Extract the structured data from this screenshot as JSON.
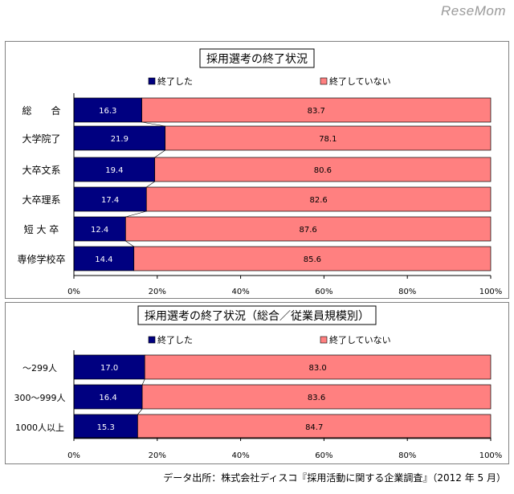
{
  "logo": "ReseMom",
  "source": "データ出所：株式会社ディスコ『採用活動に関する企業調査』（2012 年 5 月）",
  "colors": {
    "done": "#000080",
    "not_done": "#FF8080"
  },
  "chart_data": [
    {
      "type": "bar",
      "stacked": true,
      "orientation": "horizontal",
      "title": "採用選考の終了状況",
      "categories": [
        "総　　合",
        "大学院了",
        "大卒文系",
        "大卒理系",
        "短 大 卒",
        "専修学校卒"
      ],
      "series": [
        {
          "name": "終了した",
          "values": [
            16.3,
            21.9,
            19.4,
            17.4,
            12.4,
            14.4
          ]
        },
        {
          "name": "終了していない",
          "values": [
            83.7,
            78.1,
            80.6,
            82.6,
            87.6,
            85.6
          ]
        }
      ],
      "xlim": [
        0,
        100
      ],
      "xticks": [
        "0%",
        "20%",
        "40%",
        "60%",
        "80%",
        "100%"
      ],
      "legend": "top",
      "grid": false
    },
    {
      "type": "bar",
      "stacked": true,
      "orientation": "horizontal",
      "title": "採用選考の終了状況（総合／従業員規模別）",
      "categories": [
        "～299人",
        "300～999人",
        "1000人以上"
      ],
      "series": [
        {
          "name": "終了した",
          "values": [
            17.0,
            16.4,
            15.3
          ]
        },
        {
          "name": "終了していない",
          "values": [
            83.0,
            83.6,
            84.7
          ]
        }
      ],
      "xlim": [
        0,
        100
      ],
      "xticks": [
        "0%",
        "20%",
        "40%",
        "60%",
        "80%",
        "100%"
      ],
      "legend": "top",
      "grid": false
    }
  ]
}
